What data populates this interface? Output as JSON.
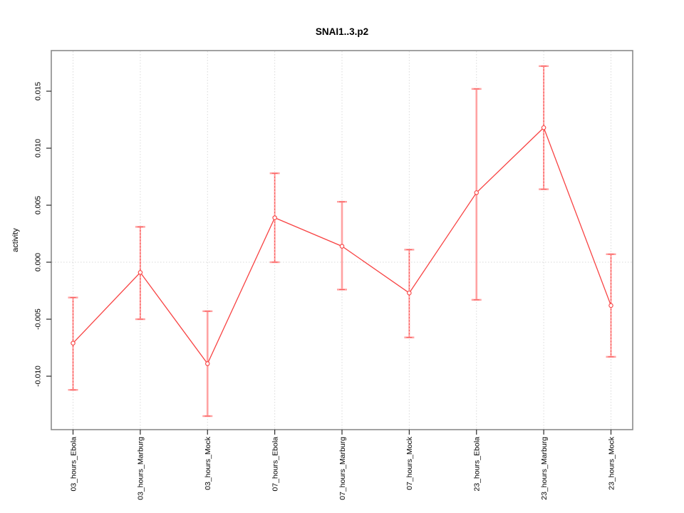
{
  "chart_data": {
    "type": "line",
    "subtype": "points-with-error-bars",
    "title": "SNAI1..3.p2",
    "xlabel": "",
    "ylabel": "activity",
    "categories": [
      "03_hours_Ebola",
      "03_hours_Marburg",
      "03_hours_Mock",
      "07_hours_Ebola",
      "07_hours_Marburg",
      "07_hours_Mock",
      "23_hours_Ebola",
      "23_hours_Marburg",
      "23_hours_Mock"
    ],
    "values": [
      -0.0071,
      -0.0009,
      -0.0089,
      0.0039,
      0.0014,
      -0.0027,
      0.0061,
      0.0118,
      -0.0038
    ],
    "error_low": [
      -0.0112,
      -0.005,
      -0.0135,
      0.0,
      -0.0024,
      -0.0066,
      -0.0033,
      0.0064,
      -0.0083
    ],
    "error_high": [
      -0.0031,
      0.0031,
      -0.0043,
      0.0078,
      0.0053,
      0.0011,
      0.0152,
      0.0172,
      0.0007
    ],
    "bar_styles": [
      "dashed",
      "dashed",
      "solid",
      "dashed",
      "solid",
      "dashed",
      "solid",
      "dashed",
      "dashed"
    ],
    "ytick_labels": [
      "0.015",
      "0.010",
      "0.005",
      "0.000",
      "-0.005",
      "-0.010"
    ],
    "ytick_values": [
      0.015,
      0.01,
      0.005,
      0.0,
      -0.005,
      -0.01
    ],
    "ylim": [
      -0.0148,
      0.0186
    ],
    "grid": "vertical-dotted-at-categories-plus-zero-line",
    "legend": "none",
    "x_label_rotation": -90,
    "marker": "open-circle",
    "colors": {
      "series_line": "#f84343",
      "marker_stroke": "#f84343",
      "error_bar_light": "#ffa2a2",
      "error_bar_dash": "#f84343",
      "gridline": "#d9d9d9",
      "frame": "#8a8a8a",
      "tick": "#2b2b2b",
      "text": "#000000",
      "background": "#ffffff"
    }
  }
}
